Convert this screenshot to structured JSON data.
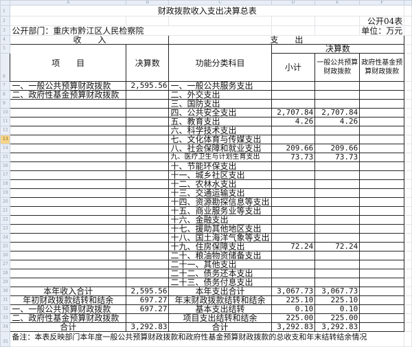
{
  "column_headers": [
    "A",
    "B",
    "C",
    "D",
    "E",
    "F"
  ],
  "title": "财政拨款收入支出决算总表",
  "form_no": "公开04表",
  "department": "公开部门：重庆市黔江区人民检察院",
  "unit": "单位：万元",
  "income_header": "收　　入",
  "expense_header": "支　　出",
  "col_item": "项　　目",
  "col_amount": "决算数",
  "col_function": "功能分类科目",
  "col_final": "决算数",
  "col_subtotal": "小计",
  "col_general": "一般公共预算财政拨款",
  "col_fund": "政府性基金预算财政拨款",
  "selected_row": 13,
  "rows": [
    {
      "n": 7,
      "a": "一、一般公共预算财政拨款",
      "b": "2,595.56",
      "c": "一、一般公共服务支出",
      "d": "",
      "e": "",
      "f": ""
    },
    {
      "n": 8,
      "a": "二、政府性基金预算财政拨款",
      "b": "",
      "c": "二、外交支出",
      "d": "",
      "e": "",
      "f": ""
    },
    {
      "n": 9,
      "a": "",
      "b": "",
      "c": "三、国防支出",
      "d": "",
      "e": "",
      "f": ""
    },
    {
      "n": 10,
      "a": "",
      "b": "",
      "c": "四、公共安全支出",
      "d": "2,707.84",
      "e": "2,707.84",
      "f": ""
    },
    {
      "n": 11,
      "a": "",
      "b": "",
      "c": "五、教育支出",
      "d": "4.26",
      "e": "4.26",
      "f": ""
    },
    {
      "n": 12,
      "a": "",
      "b": "",
      "c": "六、科学技术支出",
      "d": "",
      "e": "",
      "f": ""
    },
    {
      "n": 13,
      "a": "",
      "b": "",
      "c": "七、文化体育与传媒支出",
      "d": "",
      "e": "",
      "f": ""
    },
    {
      "n": 14,
      "a": "",
      "b": "",
      "c": "八、社会保障和就业支出",
      "d": "209.66",
      "e": "209.66",
      "f": ""
    },
    {
      "n": 15,
      "a": "",
      "b": "",
      "c": "九、医疗卫生与计划生育支出",
      "d": "73.73",
      "e": "73.73",
      "f": ""
    },
    {
      "n": 16,
      "a": "",
      "b": "",
      "c": "十、节能环保支出",
      "d": "",
      "e": "",
      "f": ""
    },
    {
      "n": 17,
      "a": "",
      "b": "",
      "c": "十一、城乡社区支出",
      "d": "",
      "e": "",
      "f": ""
    },
    {
      "n": 18,
      "a": "",
      "b": "",
      "c": "十二、农林水支出",
      "d": "",
      "e": "",
      "f": ""
    },
    {
      "n": 19,
      "a": "",
      "b": "",
      "c": "十三、交通运输支出",
      "d": "",
      "e": "",
      "f": ""
    },
    {
      "n": 20,
      "a": "",
      "b": "",
      "c": "十四、资源勘探信息等支出",
      "d": "",
      "e": "",
      "f": ""
    },
    {
      "n": 21,
      "a": "",
      "b": "",
      "c": "十五、商业服务业等支出",
      "d": "",
      "e": "",
      "f": ""
    },
    {
      "n": 22,
      "a": "",
      "b": "",
      "c": "十六、金融支出",
      "d": "",
      "e": "",
      "f": ""
    },
    {
      "n": 23,
      "a": "",
      "b": "",
      "c": "十七、援助其他地区支出",
      "d": "",
      "e": "",
      "f": ""
    },
    {
      "n": 24,
      "a": "",
      "b": "",
      "c": "十八、国土海洋气象等支出",
      "d": "",
      "e": "",
      "f": ""
    },
    {
      "n": 25,
      "a": "",
      "b": "",
      "c": "十九、住房保障支出",
      "d": "72.24",
      "e": "72.24",
      "f": ""
    },
    {
      "n": 26,
      "a": "",
      "b": "",
      "c": "二十、粮油物资储备支出",
      "d": "",
      "e": "",
      "f": ""
    },
    {
      "n": 27,
      "a": "",
      "b": "",
      "c": "二十一、其他支出",
      "d": "",
      "e": "",
      "f": ""
    },
    {
      "n": 28,
      "a": "",
      "b": "",
      "c": "二十二、债务还本支出",
      "d": "",
      "e": "",
      "f": ""
    },
    {
      "n": 29,
      "a": "",
      "b": "",
      "c": "二十三、债务付息支出",
      "d": "",
      "e": "",
      "f": ""
    },
    {
      "n": 30,
      "a": "本年收入合计",
      "b": "2,595.56",
      "c": "本年支出合计",
      "d": "3,067.73",
      "e": "3,067.73",
      "f": ""
    },
    {
      "n": 31,
      "a": "年初财政拨款结转和结余",
      "b": "697.27",
      "c": "年末财政拨款结转和结余",
      "d": "225.10",
      "e": "225.10",
      "f": ""
    },
    {
      "n": 32,
      "a": "一、一般公共预算财政拨款",
      "b": "697.27",
      "c": "基本支出结转",
      "d": "0.10",
      "e": "0.10",
      "f": ""
    },
    {
      "n": 33,
      "a": "二、政府性基金预算财政拨款",
      "b": "",
      "c": "项目支出结转和结余",
      "d": "225.00",
      "e": "225.00",
      "f": ""
    },
    {
      "n": 34,
      "a": "合计",
      "b": "3,292.83",
      "c": "合计",
      "d": "3,292.83",
      "e": "3,292.83",
      "f": ""
    }
  ],
  "note": "备注：本表反映部门本年度一般公共预算财政拨款和政府性基金预算财政拨款的总收支和年末结转结余情况"
}
